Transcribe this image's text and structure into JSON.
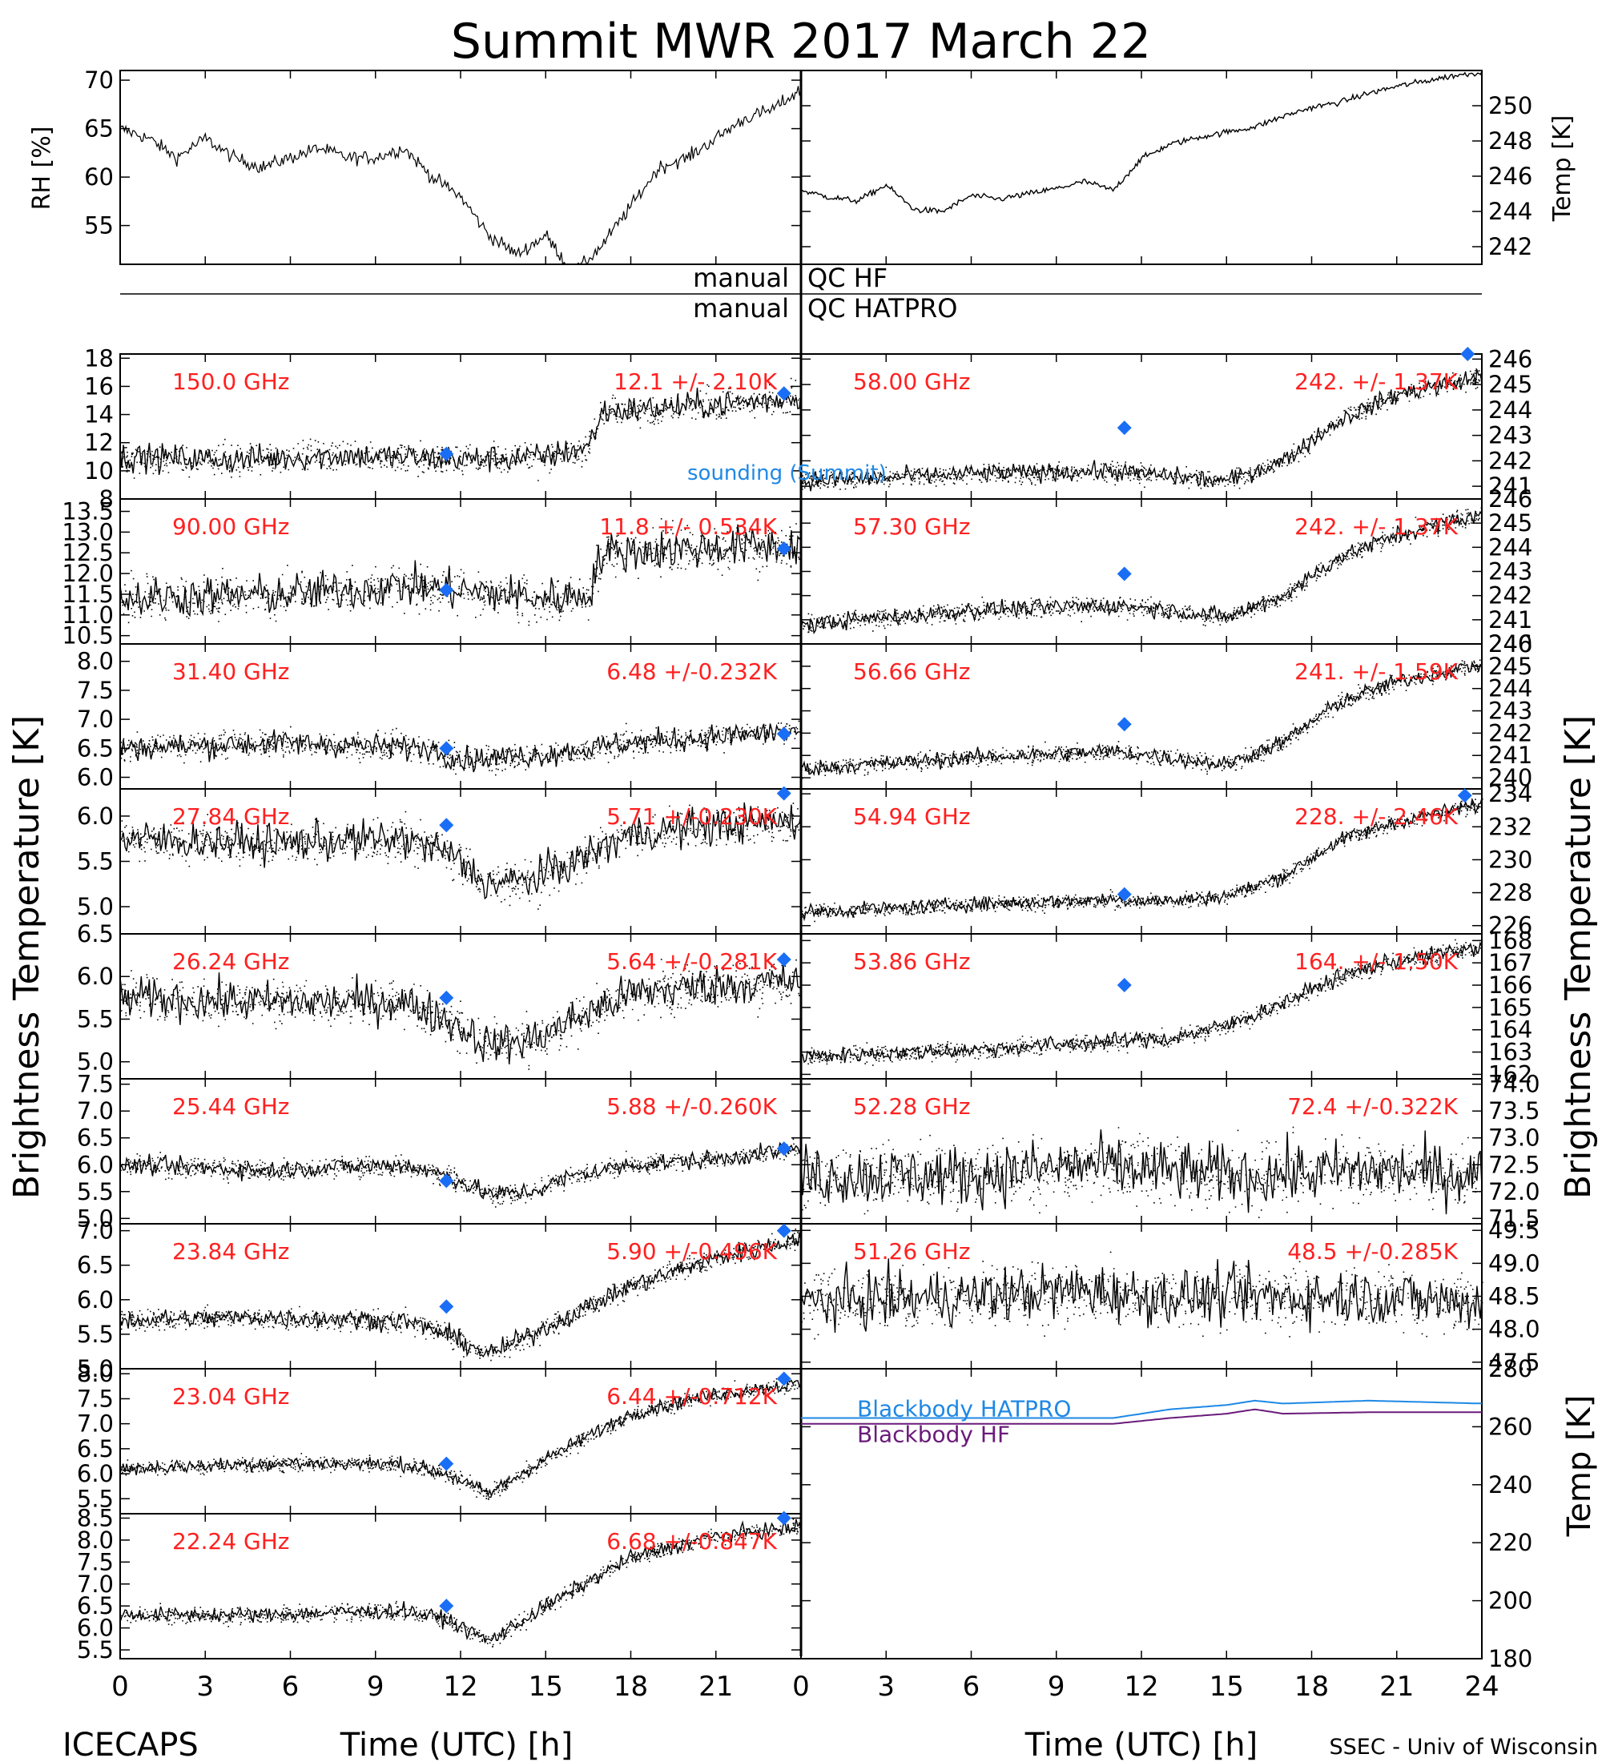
{
  "header": {
    "title": "Summit MWR 2017 March 22",
    "bottom_left": "ICECAPS",
    "bottom_right": "SSEC - Univ of Wisconsin",
    "qc_left": [
      "manual",
      "manual"
    ],
    "qc_right": [
      "QC HF",
      "QC HATPRO"
    ],
    "sounding_label": "sounding (Summit)",
    "left_ylabel": "Brightness Temperature [K]",
    "right_ylabel": "Brightness Temperature [K]"
  },
  "colors": {
    "label_red": "#ff2020",
    "marker_blue": "#1a6ef5",
    "hatpro_blue": "#1e88e5",
    "hf_purple": "#6a1b7a",
    "trace": "#000000"
  },
  "chart_data": [
    {
      "id": "rh",
      "type": "line",
      "ylabel": "RH [%]",
      "x": [
        0,
        1,
        2,
        3,
        4,
        5,
        6,
        7,
        8,
        9,
        10,
        11,
        12,
        13,
        14,
        15,
        16,
        17,
        18,
        19,
        20,
        21,
        22,
        23,
        24
      ],
      "values": [
        65,
        64,
        62,
        64,
        62,
        61,
        62,
        63,
        62,
        62,
        63,
        60,
        58,
        54,
        52,
        54,
        50,
        53,
        57,
        61,
        62,
        64,
        66,
        67,
        69
      ],
      "ylim": [
        51,
        71
      ],
      "yticks": [
        55,
        60,
        65,
        70
      ],
      "xlim": [
        0,
        24
      ]
    },
    {
      "id": "temp",
      "type": "line",
      "ylabel": "Temp [K]",
      "x": [
        0,
        1,
        2,
        3,
        4,
        5,
        6,
        7,
        8,
        9,
        10,
        11,
        12,
        13,
        14,
        15,
        16,
        17,
        18,
        19,
        20,
        21,
        22,
        23,
        24
      ],
      "values": [
        245.2,
        244.8,
        244.6,
        245.5,
        244.1,
        244.0,
        244.9,
        244.7,
        245.0,
        245.3,
        245.7,
        245.2,
        247.0,
        247.8,
        248.2,
        248.5,
        248.8,
        249.4,
        249.9,
        250.2,
        250.7,
        251.1,
        251.4,
        251.7,
        251.9
      ],
      "ylim": [
        241,
        252
      ],
      "yticks": [
        242,
        244,
        246,
        248,
        250
      ],
      "xlim": [
        0,
        24
      ]
    },
    {
      "id": "L1",
      "type": "scatter",
      "freq_label": "150.0 GHz",
      "stat_label": "12.1 +/- 2.10K",
      "ylim": [
        8,
        18.3
      ],
      "yticks": [
        8,
        10,
        12,
        14,
        16,
        18
      ],
      "ytick_labels": [
        "8",
        "10",
        "12",
        "14",
        "16",
        "18"
      ],
      "x": [
        0,
        4,
        8,
        12,
        15,
        16.5,
        17,
        20,
        23,
        24
      ],
      "trend": [
        11,
        10.8,
        11.1,
        10.8,
        11.0,
        11.7,
        14.2,
        14.6,
        15.0,
        15.3
      ],
      "noise": 0.7,
      "markers": [
        {
          "x": 11.5,
          "y": 11.2
        },
        {
          "x": 23.4,
          "y": 15.5
        }
      ]
    },
    {
      "id": "R1",
      "type": "scatter",
      "freq_label": "58.00 GHz",
      "stat_label": "242. +/- 1.37K",
      "ylim": [
        240.5,
        246.2
      ],
      "yticks": [
        241,
        242,
        243,
        244,
        245,
        246
      ],
      "ytick_labels": [
        "241",
        "242",
        "243",
        "244",
        "245",
        "246"
      ],
      "x": [
        0,
        6,
        11,
        13,
        15,
        17,
        19,
        21,
        24
      ],
      "trend": [
        241.2,
        241.5,
        241.6,
        241.4,
        241.2,
        242.0,
        243.6,
        244.6,
        245.3
      ],
      "noise": 0.25,
      "markers": [
        {
          "x": 11.4,
          "y": 243.3
        },
        {
          "x": 23.5,
          "y": 246.2
        }
      ]
    },
    {
      "id": "L2",
      "type": "scatter",
      "freq_label": "90.00 GHz",
      "stat_label": "11.8 +/- 0.534K",
      "ylim": [
        10.3,
        13.8
      ],
      "yticks": [
        10.5,
        11.0,
        11.5,
        12.0,
        12.5,
        13.0,
        13.5
      ],
      "ytick_labels": [
        "10.5",
        "11.0",
        "11.5",
        "12.0",
        "12.5",
        "13.0",
        "13.5"
      ],
      "x": [
        0,
        6,
        10,
        12,
        15,
        16.5,
        17,
        20,
        24
      ],
      "trend": [
        11.4,
        11.5,
        11.7,
        11.6,
        11.4,
        11.5,
        12.5,
        12.6,
        12.7
      ],
      "noise": 0.35,
      "markers": [
        {
          "x": 11.5,
          "y": 11.6
        },
        {
          "x": 23.4,
          "y": 12.6
        }
      ]
    },
    {
      "id": "R2",
      "type": "scatter",
      "freq_label": "57.30 GHz",
      "stat_label": "242. +/- 1.37K",
      "ylim": [
        240,
        246
      ],
      "yticks": [
        240,
        241,
        242,
        243,
        244,
        245,
        246
      ],
      "ytick_labels": [
        "240",
        "241",
        "242",
        "243",
        "244",
        "245",
        "246"
      ],
      "x": [
        0,
        6,
        11,
        13,
        15,
        17,
        19,
        21,
        24
      ],
      "trend": [
        240.8,
        241.4,
        241.6,
        241.4,
        241.1,
        242.0,
        243.6,
        244.5,
        245.4
      ],
      "noise": 0.25,
      "markers": [
        {
          "x": 11.4,
          "y": 242.9
        }
      ]
    },
    {
      "id": "L3",
      "type": "scatter",
      "freq_label": "31.40 GHz",
      "stat_label": "6.48 +/-0.232K",
      "ylim": [
        5.8,
        8.3
      ],
      "yticks": [
        6.0,
        6.5,
        7.0,
        7.5,
        8.0
      ],
      "ytick_labels": [
        "6.0",
        "6.5",
        "7.0",
        "7.5",
        "8.0"
      ],
      "x": [
        0,
        6,
        11,
        12,
        15,
        18,
        21,
        24
      ],
      "trend": [
        6.5,
        6.6,
        6.5,
        6.3,
        6.4,
        6.6,
        6.7,
        6.8
      ],
      "noise": 0.15,
      "markers": [
        {
          "x": 11.5,
          "y": 6.5
        },
        {
          "x": 23.4,
          "y": 6.75
        }
      ]
    },
    {
      "id": "R3",
      "type": "scatter",
      "freq_label": "56.66 GHz",
      "stat_label": "241. +/- 1.59K",
      "ylim": [
        239.5,
        246
      ],
      "yticks": [
        240,
        241,
        242,
        243,
        244,
        245,
        246
      ],
      "ytick_labels": [
        "240",
        "241",
        "242",
        "243",
        "244",
        "245",
        "246"
      ],
      "x": [
        0,
        6,
        11,
        13,
        15,
        17,
        19,
        21,
        24
      ],
      "trend": [
        240.4,
        240.9,
        241.2,
        240.9,
        240.6,
        241.6,
        243.4,
        244.3,
        245.1
      ],
      "noise": 0.25,
      "markers": [
        {
          "x": 11.4,
          "y": 242.4
        }
      ]
    },
    {
      "id": "L4",
      "type": "scatter",
      "freq_label": "27.84 GHz",
      "stat_label": "5.71 +/-0.230K",
      "ylim": [
        4.7,
        6.3
      ],
      "yticks": [
        5.0,
        5.5,
        6.0
      ],
      "ytick_labels": [
        "5.0",
        "5.5",
        "6.0"
      ],
      "x": [
        0,
        5,
        10,
        11.5,
        13,
        14.5,
        16,
        18,
        21,
        24
      ],
      "trend": [
        5.75,
        5.7,
        5.75,
        5.6,
        5.25,
        5.3,
        5.5,
        5.8,
        5.9,
        5.95
      ],
      "noise": 0.15,
      "markers": [
        {
          "x": 11.5,
          "y": 5.9
        },
        {
          "x": 23.4,
          "y": 6.25
        }
      ]
    },
    {
      "id": "R4",
      "type": "scatter",
      "freq_label": "54.94 GHz",
      "stat_label": "228. +/- 2.46K",
      "ylim": [
        225.5,
        234.3
      ],
      "yticks": [
        226,
        228,
        230,
        232,
        234
      ],
      "ytick_labels": [
        "226",
        "228",
        "230",
        "232",
        "234"
      ],
      "x": [
        0,
        6,
        11,
        13,
        15,
        17,
        19,
        21,
        24
      ],
      "trend": [
        226.8,
        227.3,
        227.6,
        227.5,
        227.8,
        229.0,
        231.2,
        232.3,
        233.4
      ],
      "noise": 0.3,
      "markers": [
        {
          "x": 11.4,
          "y": 227.9
        },
        {
          "x": 23.4,
          "y": 233.9
        }
      ]
    },
    {
      "id": "L5",
      "type": "scatter",
      "freq_label": "26.24 GHz",
      "stat_label": "5.64 +/-0.281K",
      "ylim": [
        4.8,
        6.5
      ],
      "yticks": [
        5.0,
        5.5,
        6.0,
        6.5
      ],
      "ytick_labels": [
        "5.0",
        "5.5",
        "6.0",
        "6.5"
      ],
      "x": [
        0,
        5,
        10,
        11.5,
        13,
        14.5,
        16,
        18,
        21,
        24
      ],
      "trend": [
        5.75,
        5.7,
        5.7,
        5.5,
        5.2,
        5.25,
        5.5,
        5.8,
        5.9,
        5.95
      ],
      "noise": 0.17,
      "markers": [
        {
          "x": 11.5,
          "y": 5.75
        },
        {
          "x": 23.4,
          "y": 6.2
        }
      ]
    },
    {
      "id": "R5",
      "type": "scatter",
      "freq_label": "53.86 GHz",
      "stat_label": "164. +/- 1.50K",
      "ylim": [
        161.8,
        168.3
      ],
      "yticks": [
        162,
        163,
        164,
        165,
        166,
        167,
        168
      ],
      "ytick_labels": [
        "162",
        "163",
        "164",
        "165",
        "166",
        "167",
        "168"
      ],
      "x": [
        0,
        6,
        11,
        13,
        15,
        17,
        19,
        21,
        24
      ],
      "trend": [
        162.8,
        163.1,
        163.5,
        163.6,
        164.2,
        165.2,
        166.4,
        167.1,
        167.7
      ],
      "noise": 0.25,
      "markers": [
        {
          "x": 11.4,
          "y": 166.0
        }
      ]
    },
    {
      "id": "L6",
      "type": "scatter",
      "freq_label": "25.44 GHz",
      "stat_label": "5.88 +/-0.260K",
      "ylim": [
        4.9,
        7.6
      ],
      "yticks": [
        5.0,
        5.5,
        6.0,
        6.5,
        7.0,
        7.5
      ],
      "ytick_labels": [
        "5.0",
        "5.5",
        "6.0",
        "6.5",
        "7.0",
        "7.5"
      ],
      "x": [
        0,
        5,
        10,
        11.5,
        13,
        14.5,
        16,
        18,
        21,
        24
      ],
      "trend": [
        6.0,
        5.9,
        6.0,
        5.8,
        5.45,
        5.5,
        5.8,
        6.0,
        6.1,
        6.3
      ],
      "noise": 0.12,
      "markers": [
        {
          "x": 11.5,
          "y": 5.7
        },
        {
          "x": 23.4,
          "y": 6.3
        }
      ]
    },
    {
      "id": "R6",
      "type": "scatter",
      "freq_label": "52.28 GHz",
      "stat_label": "72.4 +/-0.322K",
      "ylim": [
        71.4,
        74.1
      ],
      "yticks": [
        71.5,
        72.0,
        72.5,
        73.0,
        73.5,
        74.0
      ],
      "ytick_labels": [
        "71.5",
        "72.0",
        "72.5",
        "73.0",
        "73.5",
        "74.0"
      ],
      "x": [
        0,
        6,
        10,
        12,
        16,
        20,
        24
      ],
      "trend": [
        72.3,
        72.3,
        72.5,
        72.4,
        72.3,
        72.4,
        72.3
      ],
      "noise": 0.4,
      "markers": []
    },
    {
      "id": "L7",
      "type": "scatter",
      "freq_label": "23.84 GHz",
      "stat_label": "5.90 +/-0.496K",
      "ylim": [
        5.0,
        7.1
      ],
      "yticks": [
        5.0,
        5.5,
        6.0,
        6.5,
        7.0
      ],
      "ytick_labels": [
        "5.0",
        "5.5",
        "6.0",
        "6.5",
        "7.0"
      ],
      "x": [
        0,
        5,
        10,
        11.5,
        13,
        15,
        18,
        21,
        24
      ],
      "trend": [
        5.7,
        5.75,
        5.7,
        5.5,
        5.2,
        5.6,
        6.2,
        6.6,
        6.9
      ],
      "noise": 0.1,
      "markers": [
        {
          "x": 11.5,
          "y": 5.9
        },
        {
          "x": 23.4,
          "y": 7.0
        }
      ]
    },
    {
      "id": "R7",
      "type": "scatter",
      "freq_label": "51.26 GHz",
      "stat_label": "48.5 +/-0.285K",
      "ylim": [
        47.4,
        49.6
      ],
      "yticks": [
        47.5,
        48.0,
        48.5,
        49.0,
        49.5
      ],
      "ytick_labels": [
        "47.5",
        "48.0",
        "48.5",
        "49.0",
        "49.5"
      ],
      "x": [
        0,
        6,
        10,
        12,
        16,
        20,
        24
      ],
      "trend": [
        48.4,
        48.5,
        48.6,
        48.5,
        48.5,
        48.5,
        48.4
      ],
      "noise": 0.3,
      "markers": []
    },
    {
      "id": "L8",
      "type": "scatter",
      "freq_label": "23.04 GHz",
      "stat_label": "6.44 +/-0.712K",
      "ylim": [
        5.2,
        8.1
      ],
      "yticks": [
        5.5,
        6.0,
        6.5,
        7.0,
        7.5,
        8.0
      ],
      "ytick_labels": [
        "5.5",
        "6.0",
        "6.5",
        "7.0",
        "7.5",
        "8.0"
      ],
      "x": [
        0,
        5,
        10,
        11.5,
        13,
        15,
        18,
        21,
        24
      ],
      "trend": [
        6.1,
        6.2,
        6.2,
        6.0,
        5.6,
        6.3,
        7.2,
        7.6,
        7.8
      ],
      "noise": 0.1,
      "markers": [
        {
          "x": 11.5,
          "y": 6.2
        },
        {
          "x": 23.4,
          "y": 7.9
        }
      ]
    },
    {
      "id": "L9",
      "type": "scatter",
      "freq_label": "22.24 GHz",
      "stat_label": "6.68 +/-0.847K",
      "ylim": [
        5.3,
        8.6
      ],
      "yticks": [
        5.5,
        6.0,
        6.5,
        7.0,
        7.5,
        8.0,
        8.5
      ],
      "ytick_labels": [
        "5.5",
        "6.0",
        "6.5",
        "7.0",
        "7.5",
        "8.0",
        "8.5"
      ],
      "x": [
        0,
        5,
        10,
        11.5,
        13,
        15,
        18,
        21,
        24
      ],
      "trend": [
        6.3,
        6.3,
        6.4,
        6.2,
        5.7,
        6.5,
        7.6,
        8.1,
        8.3
      ],
      "noise": 0.12,
      "markers": [
        {
          "x": 11.5,
          "y": 6.5
        },
        {
          "x": 23.4,
          "y": 8.5
        }
      ]
    },
    {
      "id": "blackbody",
      "type": "line",
      "ylabel": "Temp [K]",
      "ylim": [
        180,
        280
      ],
      "yticks": [
        180,
        200,
        220,
        240,
        260,
        280
      ],
      "x": [
        0,
        10,
        11,
        13,
        15,
        16,
        17,
        20,
        24
      ],
      "series": [
        {
          "name": "Blackbody HATPRO",
          "values": [
            263,
            263,
            263,
            266,
            267.5,
            269,
            268,
            269,
            268
          ]
        },
        {
          "name": "Blackbody HF",
          "values": [
            261,
            261,
            261,
            263,
            264.5,
            266,
            264.5,
            265,
            265
          ]
        }
      ]
    }
  ],
  "axes": {
    "xticks": [
      0,
      3,
      6,
      9,
      12,
      15,
      18,
      21,
      24
    ],
    "left_xticks": [
      "0",
      "3",
      "6",
      "9",
      "12",
      "15",
      "18",
      "21"
    ],
    "right_xticks": [
      "0",
      "3",
      "6",
      "9",
      "12",
      "15",
      "18",
      "21",
      "24"
    ],
    "xlabel": "Time (UTC) [h]"
  }
}
